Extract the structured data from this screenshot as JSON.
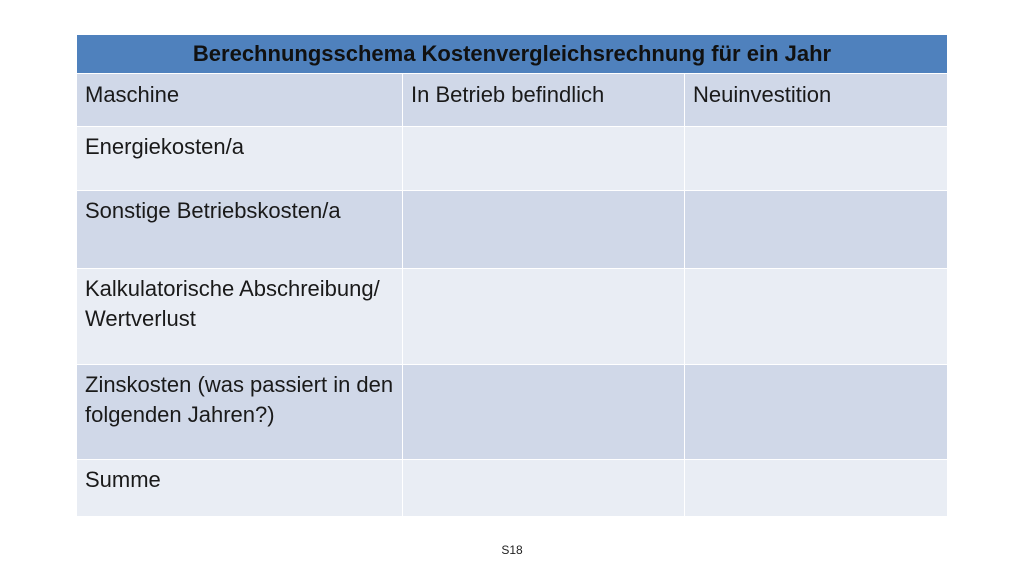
{
  "table": {
    "title": "Berechnungsschema Kostenvergleichsrechnung für ein Jahr",
    "header": {
      "col1": "Maschine",
      "col2": "In Betrieb befindlich",
      "col3": "Neuinvestition"
    },
    "rows": [
      {
        "label": "Energiekosten/a",
        "in_betrieb": "",
        "neuinvestition": ""
      },
      {
        "label": "Sonstige Betriebskosten/a",
        "in_betrieb": "",
        "neuinvestition": ""
      },
      {
        "label": "Kalkulatorische Abschreibung/ Wertverlust",
        "in_betrieb": "",
        "neuinvestition": ""
      },
      {
        "label": "Zinskosten (was passiert in den folgenden Jahren?)",
        "in_betrieb": "",
        "neuinvestition": ""
      },
      {
        "label": "Summe",
        "in_betrieb": "",
        "neuinvestition": ""
      }
    ]
  },
  "footer": {
    "slide_number": "S18"
  }
}
